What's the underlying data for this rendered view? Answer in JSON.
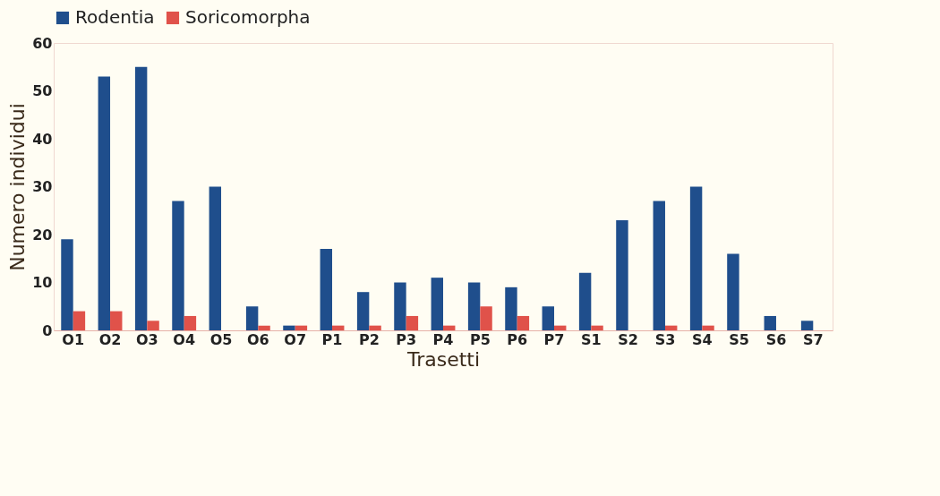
{
  "chart_data": {
    "type": "bar",
    "xlabel": "Trasetti",
    "ylabel": "Numero individui",
    "categories": [
      "O1",
      "O2",
      "O3",
      "O4",
      "O5",
      "O6",
      "O7",
      "P1",
      "P2",
      "P3",
      "P4",
      "P5",
      "P6",
      "P7",
      "S1",
      "S2",
      "S3",
      "S4",
      "S5",
      "S6",
      "S7"
    ],
    "series": [
      {
        "name": "Rodentia",
        "color": "#1f4e8c",
        "values": [
          19,
          53,
          55,
          27,
          30,
          5,
          1,
          17,
          8,
          10,
          11,
          10,
          9,
          5,
          12,
          23,
          27,
          30,
          16,
          3,
          2
        ]
      },
      {
        "name": "Soricomorpha",
        "color": "#e0524a",
        "values": [
          4,
          4,
          2,
          3,
          0,
          1,
          1,
          1,
          1,
          3,
          1,
          5,
          3,
          1,
          1,
          0,
          1,
          1,
          0,
          0,
          0
        ]
      }
    ],
    "ylim": [
      0,
      60
    ],
    "yticks": [
      0,
      10,
      20,
      30,
      40,
      50,
      60
    ],
    "grid": false,
    "legend": "top"
  }
}
